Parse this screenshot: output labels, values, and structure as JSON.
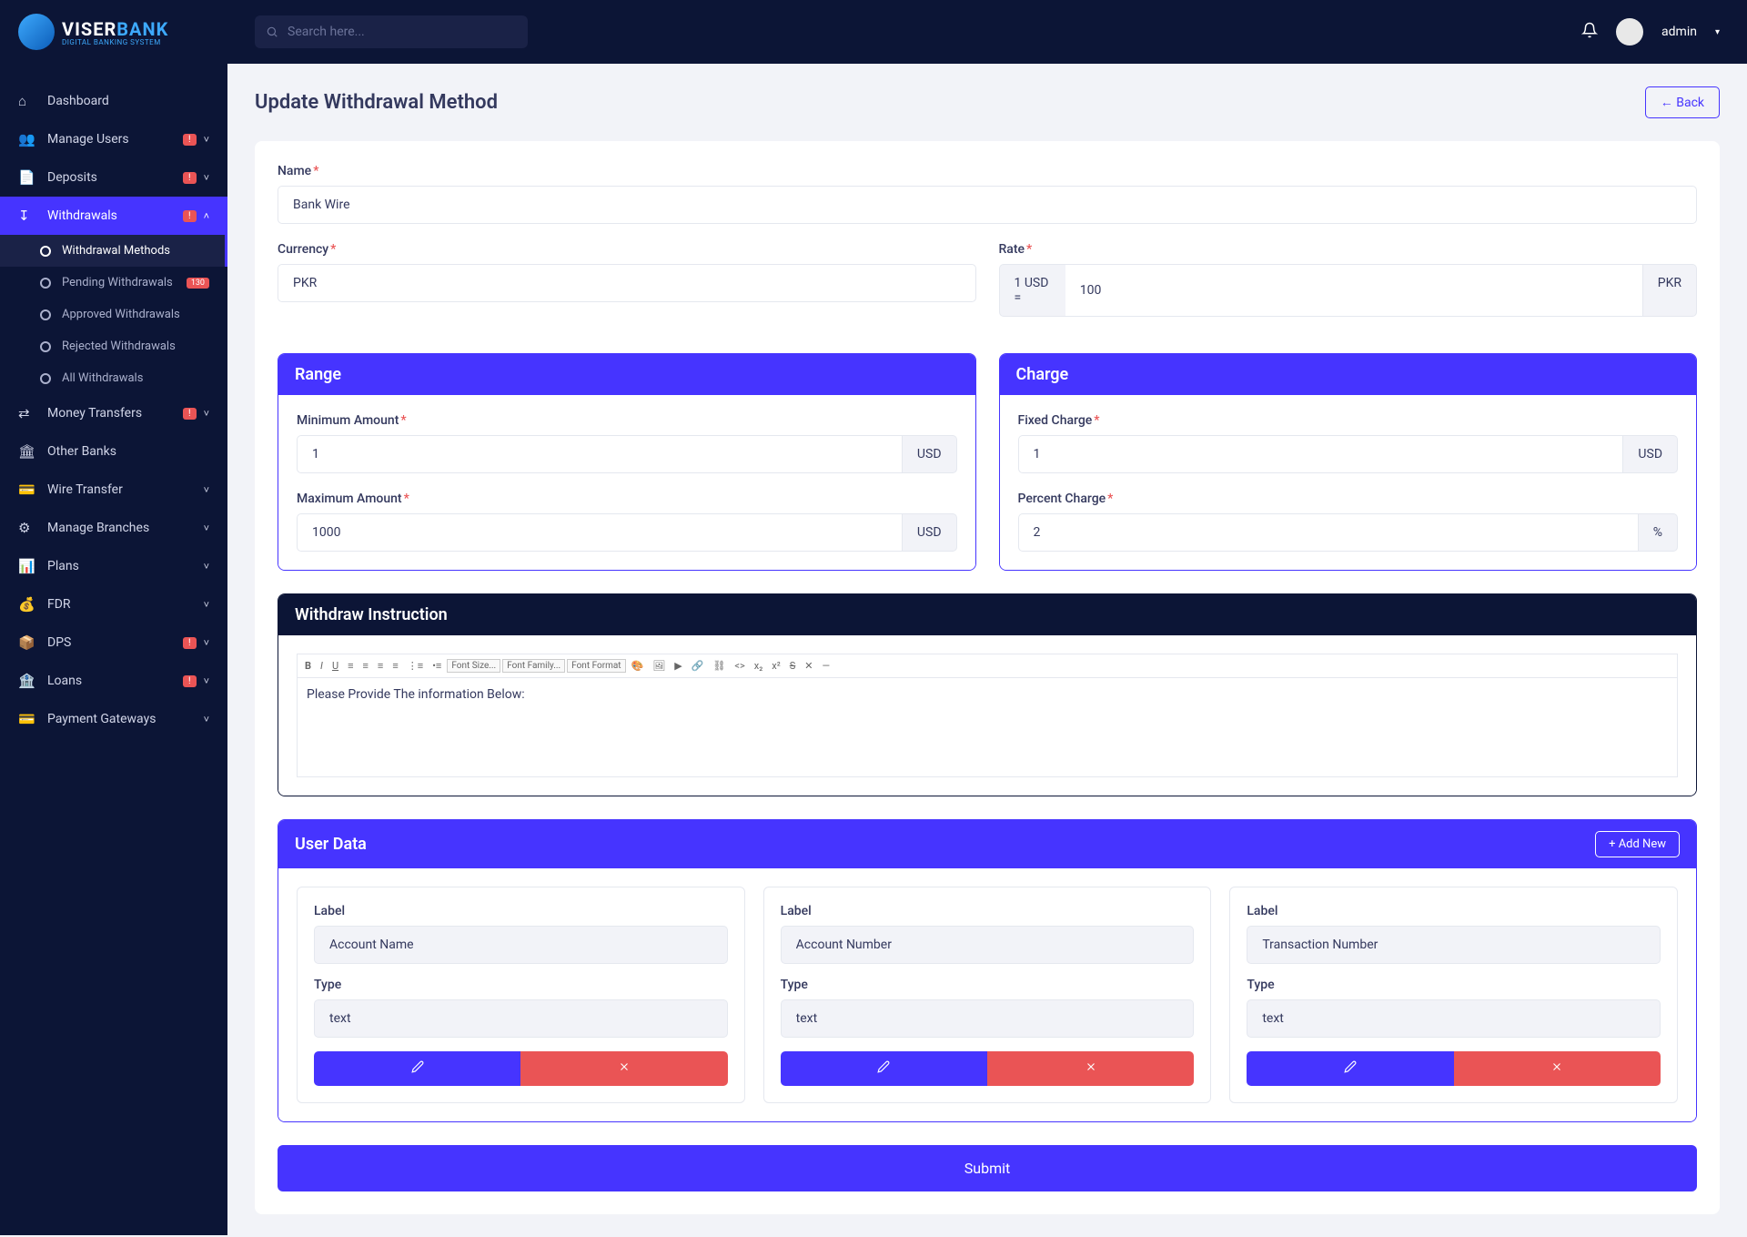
{
  "brand": {
    "name1": "VISER",
    "name2": "BANK",
    "sub": "DIGITAL BANKING SYSTEM"
  },
  "search": {
    "placeholder": "Search here..."
  },
  "user": {
    "name": "admin"
  },
  "sidebar": [
    {
      "icon": "⌂",
      "label": "Dashboard"
    },
    {
      "icon": "👥",
      "label": "Manage Users",
      "badge": "!",
      "chev": true
    },
    {
      "icon": "📄",
      "label": "Deposits",
      "badge": "!",
      "chev": true
    },
    {
      "icon": "↧",
      "label": "Withdrawals",
      "badge": "!",
      "chev": true,
      "active": true,
      "sub": [
        {
          "label": "Withdrawal Methods",
          "current": true
        },
        {
          "label": "Pending Withdrawals",
          "badge": "130"
        },
        {
          "label": "Approved Withdrawals"
        },
        {
          "label": "Rejected Withdrawals"
        },
        {
          "label": "All Withdrawals"
        }
      ]
    },
    {
      "icon": "⇄",
      "label": "Money Transfers",
      "badge": "!",
      "chev": true
    },
    {
      "icon": "🏛",
      "label": "Other Banks"
    },
    {
      "icon": "💳",
      "label": "Wire Transfer",
      "chev": true
    },
    {
      "icon": "⚙",
      "label": "Manage Branches",
      "chev": true
    },
    {
      "icon": "📊",
      "label": "Plans",
      "chev": true
    },
    {
      "icon": "💰",
      "label": "FDR",
      "chev": true
    },
    {
      "icon": "📦",
      "label": "DPS",
      "badge": "!",
      "chev": true
    },
    {
      "icon": "🏦",
      "label": "Loans",
      "badge": "!",
      "chev": true
    },
    {
      "icon": "💳",
      "label": "Payment Gateways",
      "chev": true
    }
  ],
  "page": {
    "title": "Update Withdrawal Method",
    "back": "Back"
  },
  "form": {
    "name_label": "Name",
    "name_value": "Bank Wire",
    "currency_label": "Currency",
    "currency_value": "PKR",
    "rate_label": "Rate",
    "rate_prefix": "1 USD =",
    "rate_value": "100",
    "rate_suffix": "PKR",
    "range_title": "Range",
    "min_label": "Minimum Amount",
    "min_value": "1",
    "min_unit": "USD",
    "max_label": "Maximum Amount",
    "max_value": "1000",
    "max_unit": "USD",
    "charge_title": "Charge",
    "fixed_label": "Fixed Charge",
    "fixed_value": "1",
    "fixed_unit": "USD",
    "percent_label": "Percent Charge",
    "percent_value": "2",
    "percent_unit": "%",
    "instruction_title": "Withdraw Instruction",
    "instruction_text": "Please Provide The information Below:",
    "userdata_title": "User Data",
    "add_new": "Add New",
    "label_l": "Label",
    "type_l": "Type",
    "ud": [
      {
        "label": "Account Name",
        "type": "text"
      },
      {
        "label": "Account Number",
        "type": "text"
      },
      {
        "label": "Transaction Number",
        "type": "text"
      }
    ],
    "submit": "Submit"
  },
  "toolbar_sel": [
    "Font Size...",
    "Font Family...",
    "Font Format"
  ]
}
